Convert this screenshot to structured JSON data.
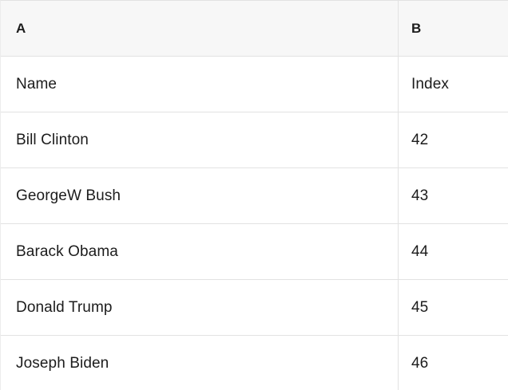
{
  "table": {
    "column_headers": [
      "A",
      "B"
    ],
    "rows": [
      {
        "a": "Name",
        "b": "Index"
      },
      {
        "a": "Bill Clinton",
        "b": "42"
      },
      {
        "a": "GeorgeW Bush",
        "b": "43"
      },
      {
        "a": "Barack Obama",
        "b": "44"
      },
      {
        "a": "Donald Trump",
        "b": "45"
      },
      {
        "a": "Joseph Biden",
        "b": "46"
      }
    ],
    "colors": {
      "header_bg": "#f7f7f7",
      "row_bg": "#ffffff",
      "border": "#e2e2e2",
      "text": "#1c1c1c"
    }
  }
}
